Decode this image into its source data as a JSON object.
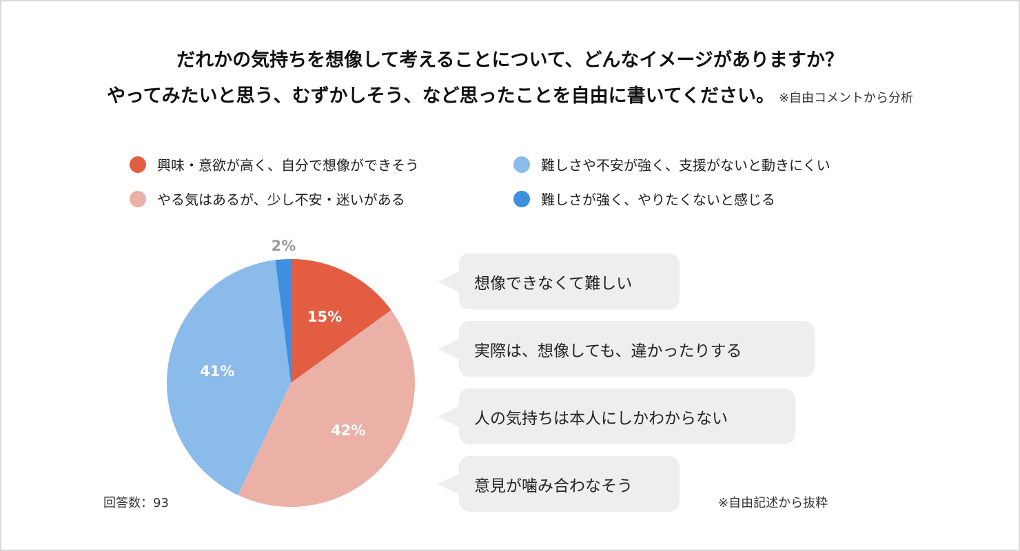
{
  "title": {
    "line1": "だれかの気持ちを想像して考えることについて、どんなイメージがありますか？",
    "line2": "やってみたいと思う、むずかしそう、など思ったことを自由に書いてください。",
    "note": "※自由コメントから分析"
  },
  "legend": [
    {
      "label": "興味・意欲が高く、自分で想像ができそう",
      "color": "#e35d42"
    },
    {
      "label": "難しさや不安が強く、支援がないと動きにくい",
      "color": "#8bbbeb"
    },
    {
      "label": "やる気はあるが、少し不安・迷いがある",
      "color": "#ebb1a6"
    },
    {
      "label": "難しさが強く、やりたくないと感じる",
      "color": "#3f8fdf"
    }
  ],
  "chart_data": {
    "type": "pie",
    "title": "だれかの気持ちを想像して考えることについて、どんなイメージがありますか？",
    "categories": [
      "興味・意欲が高く、自分で想像ができそう",
      "やる気はあるが、少し不安・迷いがある",
      "難しさや不安が強く、支援がないと動きにくい",
      "難しさが強く、やりたくないと感じる"
    ],
    "values": [
      15,
      42,
      41,
      2
    ],
    "labels": [
      "15%",
      "42%",
      "41%",
      "2%"
    ],
    "colors": [
      "#e35d42",
      "#ebb1a6",
      "#8bbbeb",
      "#3f8fdf"
    ],
    "start_angle": "12 o'clock, clockwise",
    "respondents": 93
  },
  "respondents_label": "回答数：93",
  "comments": [
    "想像できなくて難しい",
    "実際は、想像しても、違かったりする",
    "人の気持ちは本人にしかわからない",
    "意見が噛み合わなそう"
  ],
  "comments_note": "※自由記述から抜粋"
}
